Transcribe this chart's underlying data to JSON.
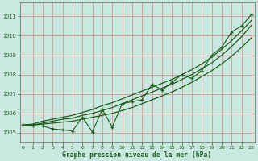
{
  "xlabel": "Graphe pression niveau de la mer (hPa)",
  "bg_color": "#c8e8e0",
  "grid_color": "#d4a0a0",
  "line_color": "#1a5c1a",
  "xlim": [
    -0.3,
    23.3
  ],
  "ylim": [
    1004.5,
    1011.7
  ],
  "yticks": [
    1005,
    1006,
    1007,
    1008,
    1009,
    1010,
    1011
  ],
  "xticks": [
    0,
    1,
    2,
    3,
    4,
    5,
    6,
    7,
    8,
    9,
    10,
    11,
    12,
    13,
    14,
    15,
    16,
    17,
    18,
    19,
    20,
    21,
    22,
    23
  ],
  "hours": [
    0,
    1,
    2,
    3,
    4,
    5,
    6,
    7,
    8,
    9,
    10,
    11,
    12,
    13,
    14,
    15,
    16,
    17,
    18,
    19,
    20,
    21,
    22,
    23
  ],
  "zigzag": [
    1005.4,
    1005.35,
    1005.35,
    1005.2,
    1005.15,
    1005.1,
    1005.8,
    1005.05,
    1006.2,
    1005.3,
    1006.5,
    1006.6,
    1006.7,
    1007.5,
    1007.2,
    1007.6,
    1008.0,
    1007.8,
    1008.2,
    1009.0,
    1009.4,
    1010.2,
    1010.5,
    1011.1
  ],
  "linear1": [
    1005.4,
    1005.4,
    1005.45,
    1005.5,
    1005.55,
    1005.6,
    1005.7,
    1005.8,
    1005.9,
    1006.0,
    1006.15,
    1006.3,
    1006.5,
    1006.7,
    1006.9,
    1007.1,
    1007.35,
    1007.6,
    1007.9,
    1008.2,
    1008.55,
    1008.95,
    1009.4,
    1009.9
  ],
  "linear2": [
    1005.4,
    1005.4,
    1005.5,
    1005.6,
    1005.7,
    1005.75,
    1005.9,
    1006.0,
    1006.15,
    1006.3,
    1006.5,
    1006.7,
    1006.9,
    1007.1,
    1007.3,
    1007.5,
    1007.75,
    1008.0,
    1008.3,
    1008.6,
    1009.0,
    1009.45,
    1009.95,
    1010.55
  ],
  "linear3": [
    1005.4,
    1005.45,
    1005.6,
    1005.7,
    1005.8,
    1005.9,
    1006.05,
    1006.2,
    1006.4,
    1006.55,
    1006.75,
    1006.95,
    1007.15,
    1007.35,
    1007.55,
    1007.75,
    1008.0,
    1008.25,
    1008.55,
    1008.9,
    1009.3,
    1009.75,
    1010.25,
    1010.8
  ]
}
